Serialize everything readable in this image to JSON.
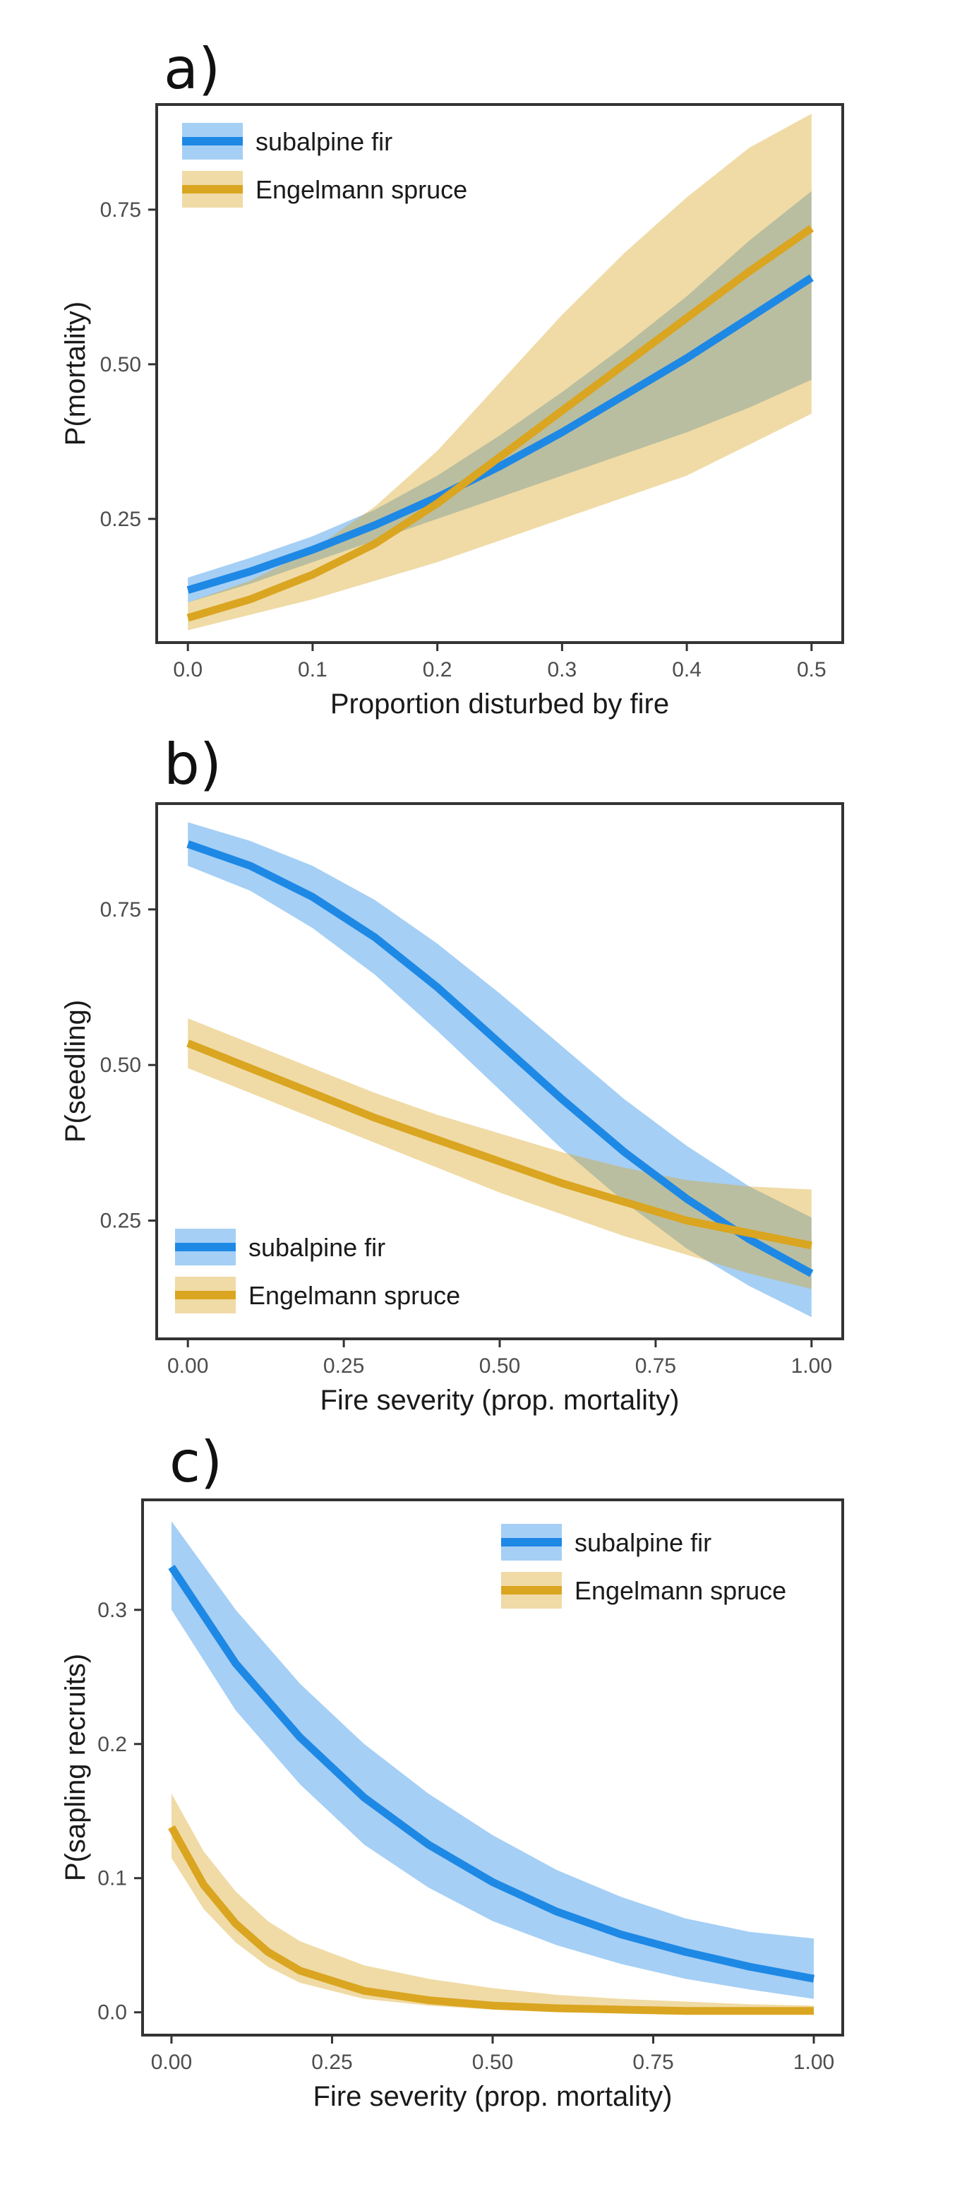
{
  "colors": {
    "subalpine_fir": "#1e88e5",
    "engelmann_spruce": "#daa520"
  },
  "chart_data": [
    {
      "type": "line",
      "panel_label": "a)",
      "xlabel": "Proportion disturbed by fire",
      "ylabel": "P(mortality)",
      "xlim": [
        -0.025,
        0.525
      ],
      "ylim": [
        0.05,
        0.92
      ],
      "xticks": [
        0.0,
        0.1,
        0.2,
        0.3,
        0.4,
        0.5
      ],
      "xtick_labels": [
        "0.0",
        "0.1",
        "0.2",
        "0.3",
        "0.4",
        "0.5"
      ],
      "yticks": [
        0.25,
        0.5,
        0.75
      ],
      "ytick_labels": [
        "0.25",
        "0.50",
        "0.75"
      ],
      "legend": {
        "position": "top-left",
        "entries": [
          "subalpine fir",
          "Engelmann spruce"
        ]
      },
      "grid": false,
      "series": [
        {
          "name": "subalpine fir",
          "color": "#1e88e5",
          "x": [
            0,
            0.05,
            0.1,
            0.15,
            0.2,
            0.25,
            0.3,
            0.35,
            0.4,
            0.45,
            0.5
          ],
          "y": [
            0.135,
            0.165,
            0.2,
            0.24,
            0.285,
            0.335,
            0.39,
            0.45,
            0.51,
            0.575,
            0.64
          ],
          "lower": [
            0.115,
            0.145,
            0.18,
            0.215,
            0.25,
            0.285,
            0.32,
            0.355,
            0.39,
            0.43,
            0.475
          ],
          "upper": [
            0.155,
            0.187,
            0.222,
            0.265,
            0.32,
            0.385,
            0.455,
            0.53,
            0.61,
            0.7,
            0.78
          ]
        },
        {
          "name": "Engelmann spruce",
          "color": "#daa520",
          "x": [
            0,
            0.05,
            0.1,
            0.15,
            0.2,
            0.25,
            0.3,
            0.35,
            0.4,
            0.45,
            0.5
          ],
          "y": [
            0.09,
            0.12,
            0.16,
            0.21,
            0.275,
            0.35,
            0.425,
            0.5,
            0.575,
            0.65,
            0.72
          ],
          "lower": [
            0.07,
            0.095,
            0.12,
            0.15,
            0.18,
            0.215,
            0.25,
            0.285,
            0.32,
            0.37,
            0.42
          ],
          "upper": [
            0.115,
            0.15,
            0.2,
            0.27,
            0.36,
            0.47,
            0.58,
            0.68,
            0.77,
            0.85,
            0.905
          ]
        }
      ]
    },
    {
      "type": "line",
      "panel_label": "b)",
      "xlabel": "Fire severity (prop. mortality)",
      "ylabel": "P(seedling)",
      "xlim": [
        -0.05,
        1.05
      ],
      "ylim": [
        0.06,
        0.92
      ],
      "xticks": [
        0.0,
        0.25,
        0.5,
        0.75,
        1.0
      ],
      "xtick_labels": [
        "0.00",
        "0.25",
        "0.50",
        "0.75",
        "1.00"
      ],
      "yticks": [
        0.25,
        0.5,
        0.75
      ],
      "ytick_labels": [
        "0.25",
        "0.50",
        "0.75"
      ],
      "legend": {
        "position": "bottom-left",
        "entries": [
          "subalpine fir",
          "Engelmann spruce"
        ]
      },
      "grid": false,
      "series": [
        {
          "name": "subalpine fir",
          "color": "#1e88e5",
          "x": [
            0,
            0.1,
            0.2,
            0.3,
            0.4,
            0.5,
            0.6,
            0.7,
            0.8,
            0.9,
            1.0
          ],
          "y": [
            0.855,
            0.82,
            0.77,
            0.705,
            0.625,
            0.535,
            0.445,
            0.36,
            0.285,
            0.22,
            0.165
          ],
          "lower": [
            0.82,
            0.78,
            0.72,
            0.645,
            0.555,
            0.46,
            0.365,
            0.28,
            0.205,
            0.145,
            0.095
          ],
          "upper": [
            0.89,
            0.86,
            0.82,
            0.765,
            0.695,
            0.615,
            0.53,
            0.445,
            0.37,
            0.305,
            0.255
          ]
        },
        {
          "name": "Engelmann spruce",
          "color": "#daa520",
          "x": [
            0,
            0.1,
            0.2,
            0.3,
            0.4,
            0.5,
            0.6,
            0.7,
            0.8,
            0.9,
            1.0
          ],
          "y": [
            0.535,
            0.495,
            0.455,
            0.415,
            0.38,
            0.345,
            0.31,
            0.28,
            0.25,
            0.23,
            0.21
          ],
          "lower": [
            0.495,
            0.455,
            0.415,
            0.375,
            0.335,
            0.295,
            0.26,
            0.225,
            0.195,
            0.165,
            0.14
          ],
          "upper": [
            0.575,
            0.535,
            0.495,
            0.455,
            0.42,
            0.39,
            0.36,
            0.335,
            0.315,
            0.305,
            0.3
          ]
        }
      ]
    },
    {
      "type": "line",
      "panel_label": "c)",
      "xlabel": "Fire severity (prop. mortality)",
      "ylabel": "P(sapling recruits)",
      "xlim": [
        -0.045,
        1.045
      ],
      "ylim": [
        -0.017,
        0.382
      ],
      "xticks": [
        0.0,
        0.25,
        0.5,
        0.75,
        1.0
      ],
      "xtick_labels": [
        "0.00",
        "0.25",
        "0.50",
        "0.75",
        "1.00"
      ],
      "yticks": [
        0.0,
        0.1,
        0.2,
        0.3
      ],
      "ytick_labels": [
        "0.0",
        "0.1",
        "0.2",
        "0.3"
      ],
      "legend": {
        "position": "top-right",
        "entries": [
          "subalpine fir",
          "Engelmann spruce"
        ]
      },
      "grid": false,
      "series": [
        {
          "name": "subalpine fir",
          "color": "#1e88e5",
          "x": [
            0,
            0.1,
            0.2,
            0.3,
            0.4,
            0.5,
            0.6,
            0.7,
            0.8,
            0.9,
            1.0
          ],
          "y": [
            0.332,
            0.26,
            0.205,
            0.16,
            0.125,
            0.097,
            0.075,
            0.058,
            0.045,
            0.034,
            0.025
          ],
          "lower": [
            0.3,
            0.225,
            0.17,
            0.125,
            0.093,
            0.068,
            0.05,
            0.036,
            0.025,
            0.017,
            0.01
          ],
          "upper": [
            0.366,
            0.3,
            0.245,
            0.2,
            0.163,
            0.132,
            0.106,
            0.086,
            0.07,
            0.06,
            0.055
          ]
        },
        {
          "name": "Engelmann spruce",
          "color": "#daa520",
          "x": [
            0,
            0.05,
            0.1,
            0.15,
            0.2,
            0.3,
            0.4,
            0.5,
            0.6,
            0.7,
            0.8,
            0.9,
            1.0
          ],
          "y": [
            0.138,
            0.095,
            0.066,
            0.045,
            0.031,
            0.016,
            0.009,
            0.005,
            0.003,
            0.002,
            0.001,
            0.001,
            0.001
          ],
          "lower": [
            0.115,
            0.077,
            0.052,
            0.034,
            0.022,
            0.01,
            0.005,
            0.002,
            0.001,
            0.0,
            0.0,
            0.0,
            0.0
          ],
          "upper": [
            0.163,
            0.12,
            0.09,
            0.068,
            0.053,
            0.035,
            0.025,
            0.018,
            0.013,
            0.01,
            0.008,
            0.006,
            0.005
          ]
        }
      ]
    }
  ]
}
